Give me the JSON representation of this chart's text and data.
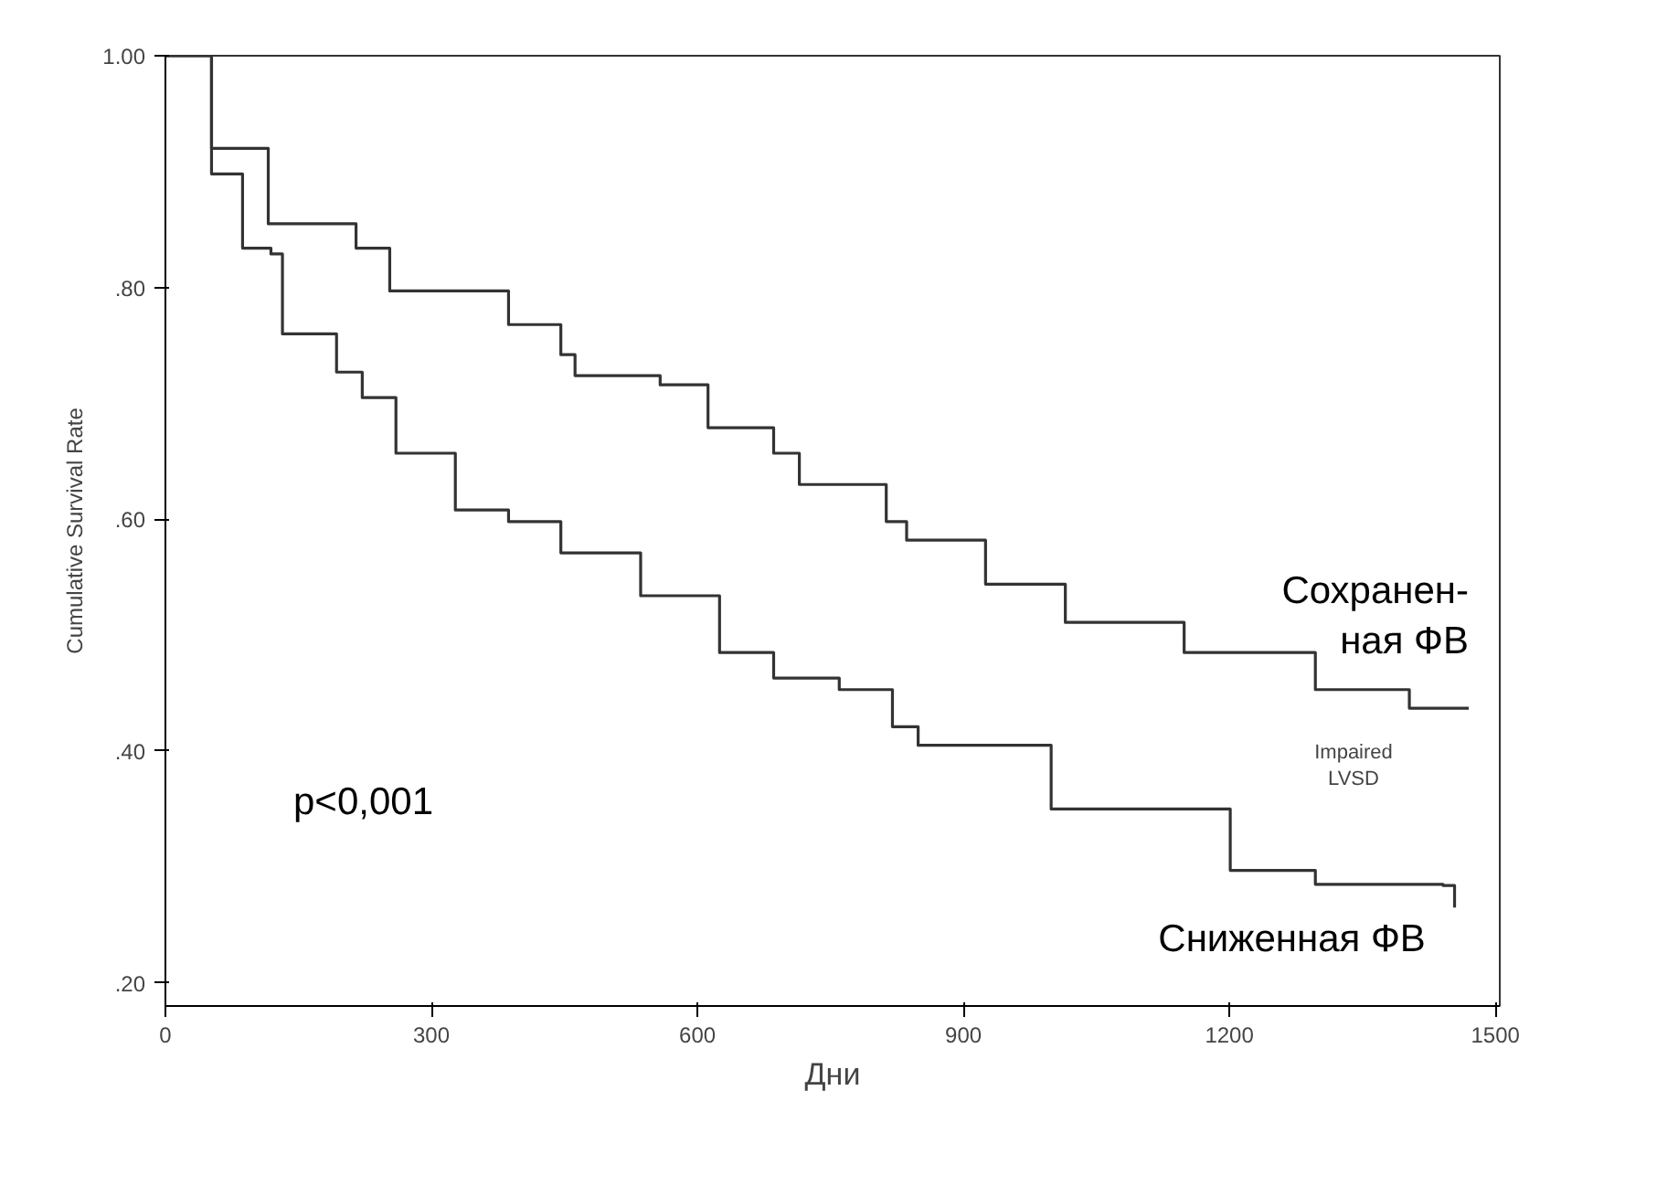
{
  "chart_data": {
    "type": "step",
    "xlabel": "Дни",
    "ylabel": "Cumulative Survival Rate",
    "xlim": [
      0,
      1505
    ],
    "ylim": [
      0.18,
      1.0
    ],
    "xticks": [
      0,
      300,
      600,
      900,
      1200,
      1500
    ],
    "yticks": [
      {
        "value": 0.2,
        "label": ".20"
      },
      {
        "value": 0.4,
        "label": ".40"
      },
      {
        "value": 0.6,
        "label": ".60"
      },
      {
        "value": 0.8,
        "label": ".80"
      },
      {
        "value": 1.0,
        "label": "1.00"
      }
    ],
    "grid": false,
    "marker": "none",
    "line_style": "solid",
    "series": [
      {
        "name": "Сохранен-\nная ФВ",
        "color": "#333333",
        "x": [
          0,
          52,
          116,
          215,
          253,
          387,
          446,
          462,
          558,
          612,
          686,
          715,
          813,
          836,
          925,
          1015,
          1149,
          1297,
          1403,
          1470
        ],
        "values": [
          1.0,
          0.92,
          0.855,
          0.834,
          0.797,
          0.768,
          0.742,
          0.724,
          0.716,
          0.679,
          0.657,
          0.63,
          0.598,
          0.582,
          0.544,
          0.511,
          0.485,
          0.453,
          0.437,
          0.437
        ]
      },
      {
        "name": "Сниженная  ФВ",
        "color": "#333333",
        "x": [
          0,
          52,
          87,
          119,
          132,
          193,
          222,
          260,
          327,
          387,
          446,
          536,
          625,
          686,
          760,
          820,
          849,
          999,
          1105,
          1201,
          1297,
          1441,
          1454
        ],
        "values": [
          1.0,
          0.898,
          0.834,
          0.829,
          0.76,
          0.727,
          0.705,
          0.657,
          0.608,
          0.598,
          0.571,
          0.534,
          0.485,
          0.463,
          0.453,
          0.421,
          0.405,
          0.35,
          0.35,
          0.297,
          0.285,
          0.284,
          0.265
        ]
      }
    ],
    "annotations": [
      "p<0,001",
      "Impaired\nLVSD"
    ]
  }
}
